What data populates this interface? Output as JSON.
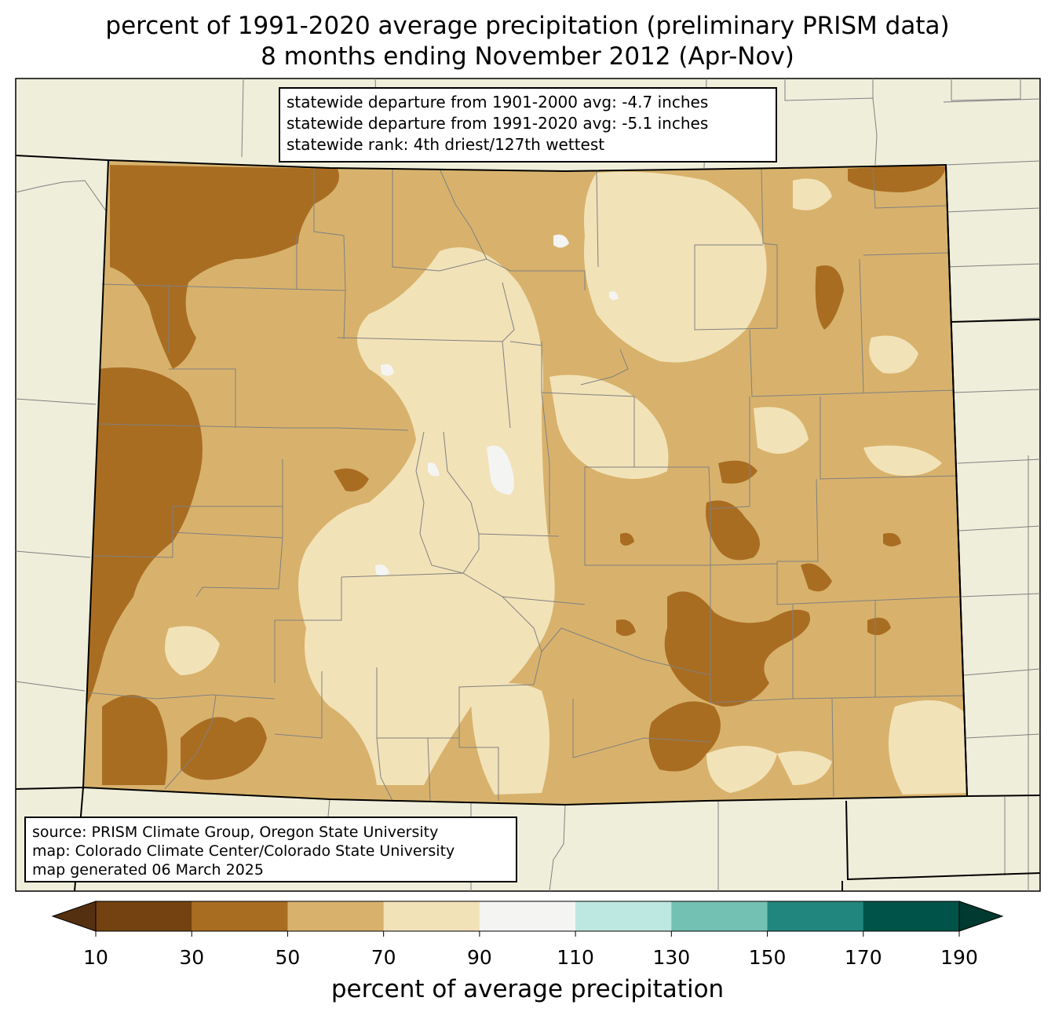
{
  "title": {
    "line1": "percent of 1991-2020 average precipitation (preliminary PRISM data)",
    "line2": "8 months ending November 2012 (Apr-Nov)"
  },
  "stats_box": {
    "line1": "statewide departure from 1901-2000 avg: -4.7 inches",
    "line2": "statewide departure from 1991-2020 avg: -5.1 inches",
    "line3": "statewide rank: 4th driest/127th wettest"
  },
  "credits_box": {
    "line1": "source: PRISM Climate Group, Oregon State University",
    "line2": "map: Colorado Climate Center/Colorado State University",
    "line3": "map generated 06 March 2025"
  },
  "colorbar": {
    "label": "percent of average precipitation",
    "ticks": [
      "10",
      "30",
      "50",
      "70",
      "90",
      "110",
      "130",
      "150",
      "170",
      "190"
    ],
    "colors": [
      "#734210",
      "#a96d22",
      "#d8b26c",
      "#f2e2b8",
      "#f4f4f2",
      "#bde7e1",
      "#72c1b3",
      "#21867d",
      "#005349"
    ],
    "under_color": "#553010",
    "over_color": "#003a30"
  },
  "map_colors": {
    "background": "#efeedb",
    "driest": "#a96d22",
    "dry": "#d8b26c",
    "near_normal_low": "#f2e2b8",
    "normal": "#f4f4f2",
    "county_lines": "#808080",
    "state_lines": "#000000"
  }
}
